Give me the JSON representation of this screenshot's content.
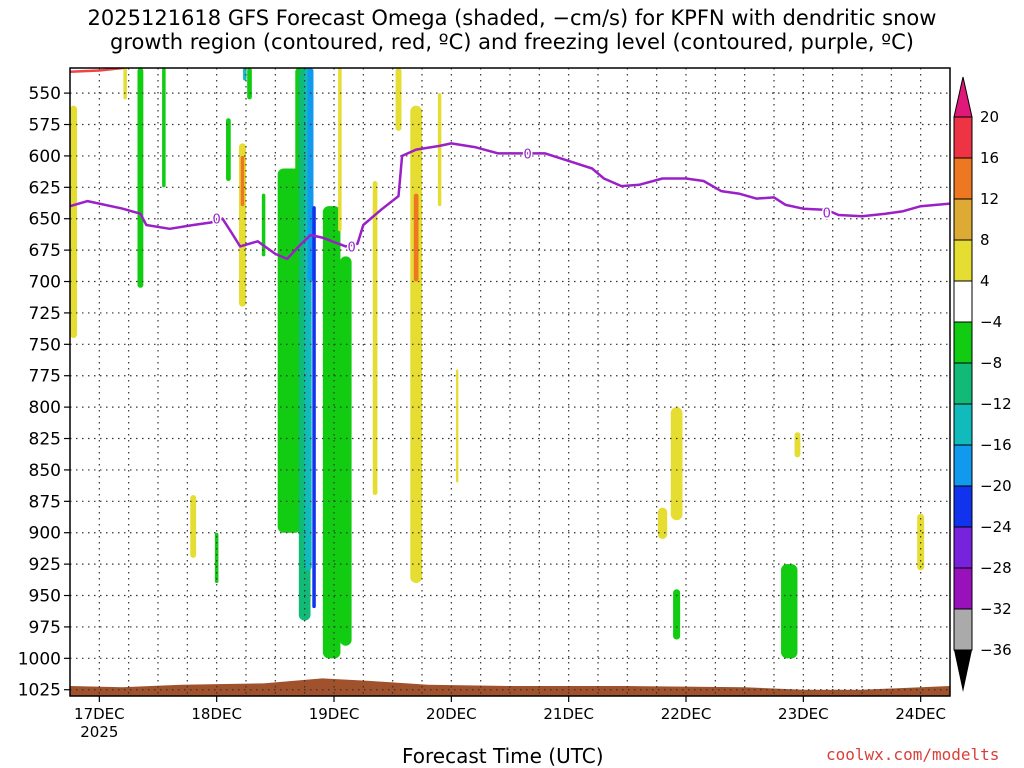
{
  "title": {
    "line1": "2025121618 GFS Forecast Omega (shaded, −cm/s) for KPFN with dendritic snow",
    "line2": "growth region (contoured, red, ºC) and freezing level (contoured, purple, ºC)"
  },
  "xlabel": "Forecast Time (UTC)",
  "watermark": "coolwx.com/modelts",
  "chart_data": {
    "type": "heatmap",
    "x_axis": {
      "ticks": [
        "17DEC",
        "18DEC",
        "19DEC",
        "20DEC",
        "21DEC",
        "22DEC",
        "23DEC",
        "24DEC"
      ],
      "year_label": "2025",
      "range_days": [
        16.75,
        24.25
      ]
    },
    "y_axis": {
      "ticks": [
        550,
        575,
        600,
        625,
        650,
        675,
        700,
        725,
        750,
        775,
        800,
        825,
        850,
        875,
        900,
        925,
        950,
        975,
        1000,
        1025
      ],
      "range_hpa": [
        530,
        1030
      ],
      "inverted": true
    },
    "grid": true,
    "colorbar": {
      "labels": [
        "20",
        "16",
        "12",
        "8",
        "4",
        "−4",
        "−8",
        "−12",
        "−16",
        "−20",
        "−24",
        "−28",
        "−32",
        "−36"
      ],
      "colors": [
        "#ee3344",
        "#ee7722",
        "#ddaa33",
        "#e6dd33",
        "#ffffff",
        "#11cc11",
        "#11bb77",
        "#11bbbb",
        "#1199ee",
        "#1133ee",
        "#7722dd",
        "#9911bb",
        "#aaaaaa"
      ],
      "top_arrow_color": "#e0187a",
      "bottom_arrow_color": "#000000"
    },
    "freezing_level": {
      "label": "0",
      "color": "#9a20c8",
      "points": [
        [
          16.75,
          640
        ],
        [
          16.9,
          636
        ],
        [
          17.2,
          642
        ],
        [
          17.35,
          646
        ],
        [
          17.4,
          655
        ],
        [
          17.6,
          658
        ],
        [
          17.8,
          655
        ],
        [
          17.95,
          653
        ],
        [
          18.05,
          650
        ],
        [
          18.12,
          660
        ],
        [
          18.2,
          672
        ],
        [
          18.35,
          668
        ],
        [
          18.5,
          678
        ],
        [
          18.6,
          682
        ],
        [
          18.7,
          672
        ],
        [
          18.8,
          663
        ],
        [
          18.9,
          665
        ],
        [
          19.1,
          672
        ],
        [
          19.2,
          670
        ],
        [
          19.25,
          655
        ],
        [
          19.4,
          643
        ],
        [
          19.55,
          632
        ],
        [
          19.58,
          600
        ],
        [
          19.7,
          595
        ],
        [
          19.9,
          592
        ],
        [
          20.0,
          590
        ],
        [
          20.2,
          593
        ],
        [
          20.4,
          598
        ],
        [
          20.6,
          598
        ],
        [
          20.8,
          598
        ],
        [
          21.0,
          604
        ],
        [
          21.2,
          610
        ],
        [
          21.3,
          618
        ],
        [
          21.45,
          624
        ],
        [
          21.6,
          623
        ],
        [
          21.8,
          618
        ],
        [
          22.0,
          618
        ],
        [
          22.15,
          620
        ],
        [
          22.3,
          628
        ],
        [
          22.45,
          630
        ],
        [
          22.6,
          634
        ],
        [
          22.75,
          633
        ],
        [
          22.85,
          639
        ],
        [
          23.0,
          642
        ],
        [
          23.2,
          643
        ],
        [
          23.3,
          647
        ],
        [
          23.5,
          648
        ],
        [
          23.7,
          646
        ],
        [
          23.85,
          644
        ],
        [
          24.0,
          640
        ],
        [
          24.25,
          638
        ]
      ]
    },
    "dgz_level": {
      "color": "#ee4444",
      "points": [
        [
          16.75,
          533
        ],
        [
          17.0,
          532
        ],
        [
          17.2,
          530
        ],
        [
          17.25,
          528
        ]
      ]
    },
    "surface_color": "#a0522d",
    "omega_regions": [
      {
        "color": "#e6dd33",
        "x": 16.78,
        "p": [
          560,
          745
        ],
        "w": 0.06
      },
      {
        "color": "#e6dd33",
        "x": 17.22,
        "p": [
          530,
          555
        ],
        "w": 0.03
      },
      {
        "color": "#11cc11",
        "x": 17.35,
        "p": [
          530,
          705
        ],
        "w": 0.05
      },
      {
        "color": "#11cc11",
        "x": 17.55,
        "p": [
          530,
          625
        ],
        "w": 0.03
      },
      {
        "color": "#11cc11",
        "x": 18.1,
        "p": [
          570,
          620
        ],
        "w": 0.04
      },
      {
        "color": "#e6dd33",
        "x": 18.22,
        "p": [
          590,
          720
        ],
        "w": 0.06
      },
      {
        "color": "#ee7722",
        "x": 18.22,
        "p": [
          600,
          640
        ],
        "w": 0.03
      },
      {
        "color": "#11cc11",
        "x": 18.28,
        "p": [
          530,
          555
        ],
        "w": 0.04
      },
      {
        "color": "#11bbbb",
        "x": 18.24,
        "p": [
          530,
          540
        ],
        "w": 0.03
      },
      {
        "color": "#11cc11",
        "x": 18.4,
        "p": [
          630,
          680
        ],
        "w": 0.03
      },
      {
        "color": "#11cc11",
        "x": 18.62,
        "p": [
          610,
          900
        ],
        "w": 0.2
      },
      {
        "color": "#11cc11",
        "x": 18.7,
        "p": [
          530,
          680
        ],
        "w": 0.06
      },
      {
        "color": "#11bb77",
        "x": 18.75,
        "p": [
          530,
          970
        ],
        "w": 0.1
      },
      {
        "color": "#11bbbb",
        "x": 18.78,
        "p": [
          530,
          930
        ],
        "w": 0.06
      },
      {
        "color": "#1199ee",
        "x": 18.8,
        "p": [
          530,
          700
        ],
        "w": 0.05
      },
      {
        "color": "#1133ee",
        "x": 18.83,
        "p": [
          640,
          960
        ],
        "w": 0.03
      },
      {
        "color": "#11cc11",
        "x": 18.98,
        "p": [
          640,
          1000
        ],
        "w": 0.15
      },
      {
        "color": "#11cc11",
        "x": 19.1,
        "p": [
          680,
          990
        ],
        "w": 0.1
      },
      {
        "color": "#e6dd33",
        "x": 19.05,
        "p": [
          530,
          660
        ],
        "w": 0.03
      },
      {
        "color": "#e6dd33",
        "x": 19.35,
        "p": [
          620,
          870
        ],
        "w": 0.04
      },
      {
        "color": "#e6dd33",
        "x": 19.55,
        "p": [
          530,
          580
        ],
        "w": 0.05
      },
      {
        "color": "#e6dd33",
        "x": 19.7,
        "p": [
          560,
          940
        ],
        "w": 0.1
      },
      {
        "color": "#ee7722",
        "x": 19.7,
        "p": [
          630,
          700
        ],
        "w": 0.04
      },
      {
        "color": "#e6dd33",
        "x": 19.9,
        "p": [
          550,
          640
        ],
        "w": 0.03
      },
      {
        "color": "#e6dd33",
        "x": 20.05,
        "p": [
          770,
          860
        ],
        "w": 0.02
      },
      {
        "color": "#e6dd33",
        "x": 17.8,
        "p": [
          870,
          920
        ],
        "w": 0.05
      },
      {
        "color": "#11cc11",
        "x": 18.0,
        "p": [
          900,
          940
        ],
        "w": 0.03
      },
      {
        "color": "#e6dd33",
        "x": 21.92,
        "p": [
          800,
          890
        ],
        "w": 0.1
      },
      {
        "color": "#e6dd33",
        "x": 21.8,
        "p": [
          880,
          905
        ],
        "w": 0.08
      },
      {
        "color": "#11cc11",
        "x": 21.92,
        "p": [
          945,
          985
        ],
        "w": 0.06
      },
      {
        "color": "#e6dd33",
        "x": 22.95,
        "p": [
          820,
          840
        ],
        "w": 0.05
      },
      {
        "color": "#11cc11",
        "x": 22.88,
        "p": [
          925,
          1000
        ],
        "w": 0.14
      },
      {
        "color": "#e6dd33",
        "x": 24.0,
        "p": [
          885,
          930
        ],
        "w": 0.06
      }
    ]
  }
}
